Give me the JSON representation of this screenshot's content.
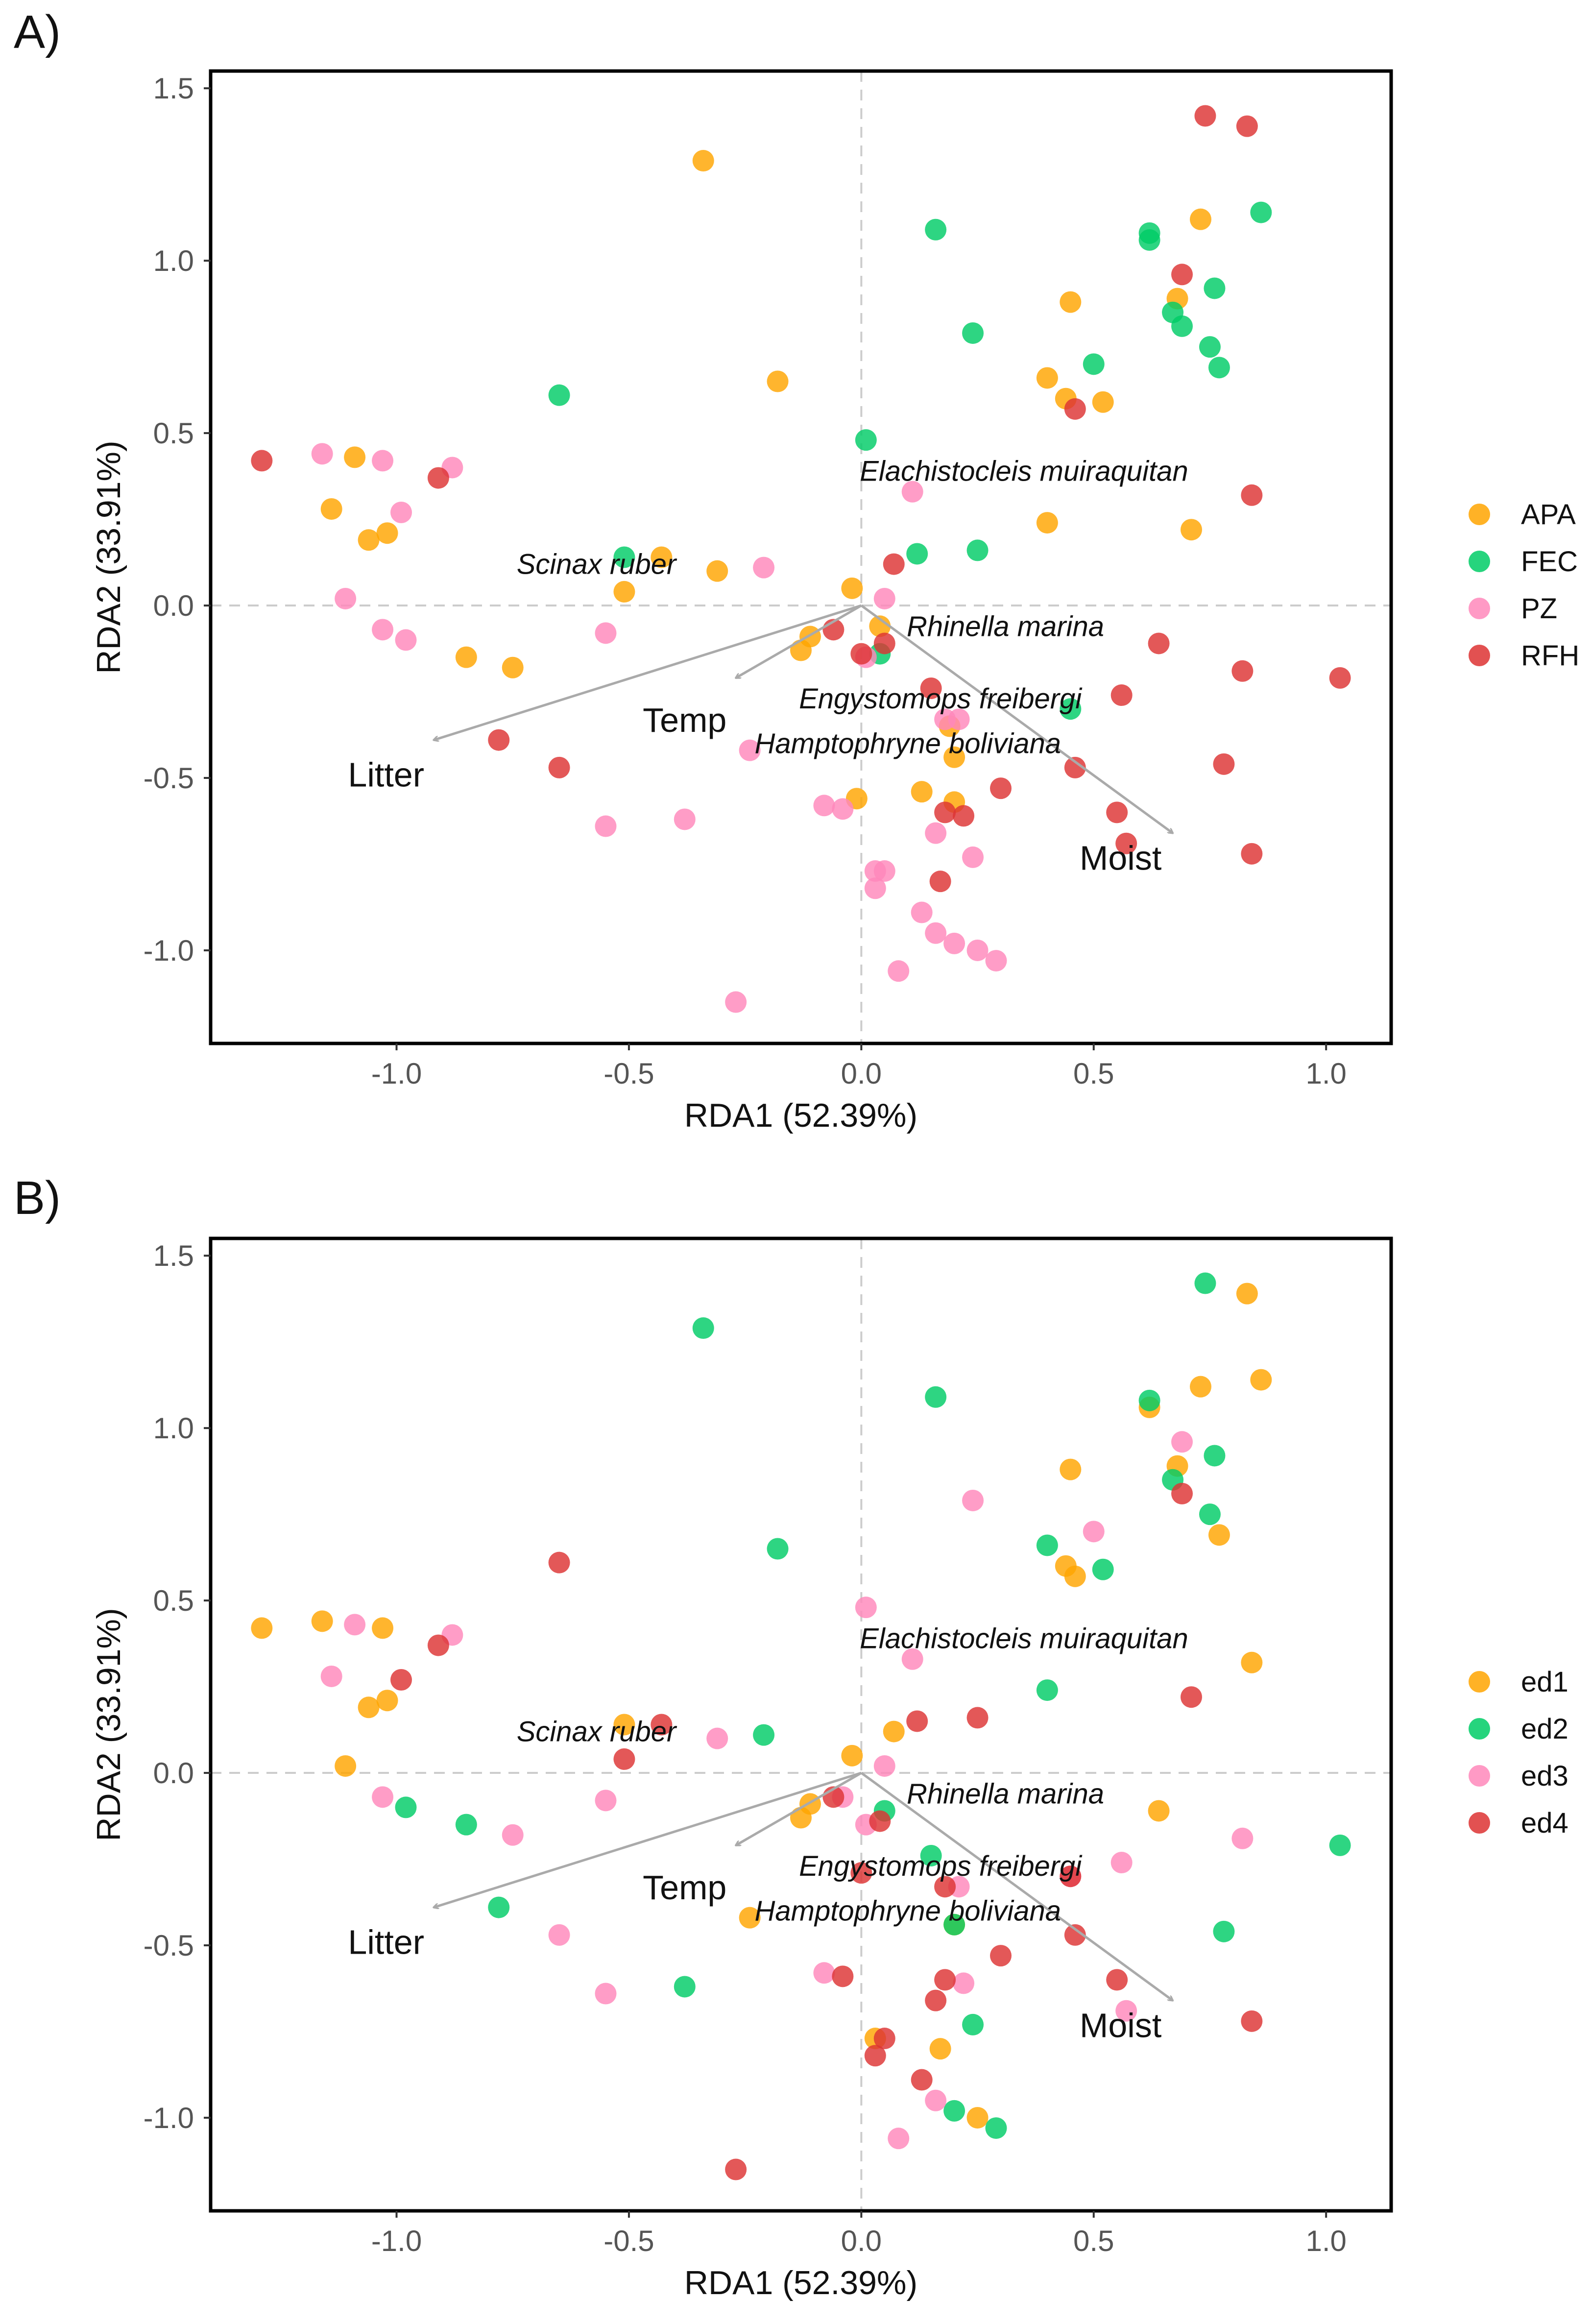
{
  "chart_data": [
    {
      "panel_label": "A)",
      "type": "scatter",
      "xlabel": "RDA1 (52.39%)",
      "ylabel": "RDA2 (33.91%)",
      "xlim": [
        -1.4,
        1.14
      ],
      "ylim": [
        -1.27,
        1.55
      ],
      "x_ticks": [
        -1.0,
        -0.5,
        0.0,
        0.5,
        1.0
      ],
      "x_tick_labels": [
        "-1.0",
        "-0.5",
        "0.0",
        "0.5",
        "1.0"
      ],
      "y_ticks": [
        -1.0,
        -0.5,
        0.0,
        0.5,
        1.0,
        1.5
      ],
      "y_tick_labels": [
        "-1.0",
        "-0.5",
        "0.0",
        "0.5",
        "1.0",
        "1.5"
      ],
      "grid": false,
      "reference_lines": "dashed lines at x=0 and y=0",
      "legend_position": "right",
      "series": [
        {
          "name": "APA",
          "color": "#FFA500",
          "points": [
            [
              -0.34,
              1.29
            ],
            [
              -0.18,
              0.65
            ],
            [
              0.73,
              1.12
            ],
            [
              0.68,
              0.89
            ],
            [
              0.45,
              0.88
            ],
            [
              0.4,
              0.66
            ],
            [
              0.44,
              0.6
            ],
            [
              0.52,
              0.59
            ],
            [
              -1.09,
              0.43
            ],
            [
              -1.14,
              0.28
            ],
            [
              -1.02,
              0.21
            ],
            [
              -1.06,
              0.19
            ],
            [
              0.4,
              0.24
            ],
            [
              0.71,
              0.22
            ],
            [
              -0.43,
              0.14
            ],
            [
              -0.31,
              0.1
            ],
            [
              -0.51,
              0.04
            ],
            [
              -0.02,
              0.05
            ],
            [
              -0.11,
              -0.09
            ],
            [
              -0.13,
              -0.13
            ],
            [
              -0.85,
              -0.15
            ],
            [
              -0.75,
              -0.18
            ],
            [
              0.04,
              -0.06
            ],
            [
              -0.01,
              -0.56
            ],
            [
              0.13,
              -0.54
            ],
            [
              0.2,
              -0.57
            ],
            [
              0.2,
              -0.44
            ],
            [
              0.19,
              -0.35
            ]
          ]
        },
        {
          "name": "FEC",
          "color": "#00CC66",
          "points": [
            [
              0.86,
              1.14
            ],
            [
              0.62,
              1.08
            ],
            [
              0.62,
              1.06
            ],
            [
              0.16,
              1.09
            ],
            [
              0.76,
              0.92
            ],
            [
              0.67,
              0.85
            ],
            [
              0.69,
              0.81
            ],
            [
              0.24,
              0.79
            ],
            [
              0.75,
              0.75
            ],
            [
              0.77,
              0.69
            ],
            [
              0.5,
              0.7
            ],
            [
              -0.65,
              0.61
            ],
            [
              0.01,
              0.48
            ],
            [
              -0.51,
              0.14
            ],
            [
              0.12,
              0.15
            ],
            [
              0.25,
              0.16
            ],
            [
              0.45,
              -0.3
            ],
            [
              0.04,
              -0.14
            ]
          ]
        },
        {
          "name": "PZ",
          "color": "#FF88BB",
          "points": [
            [
              -1.16,
              0.44
            ],
            [
              -1.03,
              0.42
            ],
            [
              -0.88,
              0.4
            ],
            [
              -0.99,
              0.27
            ],
            [
              0.11,
              0.33
            ],
            [
              -0.21,
              0.11
            ],
            [
              -1.11,
              0.02
            ],
            [
              0.05,
              0.02
            ],
            [
              -1.03,
              -0.07
            ],
            [
              -0.98,
              -0.1
            ],
            [
              -0.55,
              -0.08
            ],
            [
              0.01,
              -0.15
            ],
            [
              -0.24,
              -0.42
            ],
            [
              0.18,
              -0.33
            ],
            [
              0.21,
              -0.33
            ],
            [
              -0.08,
              -0.58
            ],
            [
              -0.04,
              -0.59
            ],
            [
              -0.55,
              -0.64
            ],
            [
              -0.38,
              -0.62
            ],
            [
              0.16,
              -0.66
            ],
            [
              0.24,
              -0.73
            ],
            [
              0.03,
              -0.77
            ],
            [
              0.05,
              -0.77
            ],
            [
              0.03,
              -0.82
            ],
            [
              0.13,
              -0.89
            ],
            [
              0.16,
              -0.95
            ],
            [
              0.2,
              -0.98
            ],
            [
              0.25,
              -1.0
            ],
            [
              0.29,
              -1.03
            ],
            [
              0.08,
              -1.06
            ],
            [
              -0.27,
              -1.15
            ]
          ]
        },
        {
          "name": "RFH",
          "color": "#DD3333",
          "points": [
            [
              0.74,
              1.42
            ],
            [
              0.83,
              1.39
            ],
            [
              0.69,
              0.96
            ],
            [
              0.46,
              0.57
            ],
            [
              -1.29,
              0.42
            ],
            [
              -0.91,
              0.37
            ],
            [
              0.84,
              0.32
            ],
            [
              0.07,
              0.12
            ],
            [
              -0.06,
              -0.07
            ],
            [
              0.05,
              -0.11
            ],
            [
              0.0,
              -0.14
            ],
            [
              0.64,
              -0.11
            ],
            [
              0.82,
              -0.19
            ],
            [
              1.03,
              -0.21
            ],
            [
              0.15,
              -0.24
            ],
            [
              0.56,
              -0.26
            ],
            [
              -0.78,
              -0.39
            ],
            [
              -0.65,
              -0.47
            ],
            [
              0.46,
              -0.47
            ],
            [
              0.78,
              -0.46
            ],
            [
              0.3,
              -0.53
            ],
            [
              0.55,
              -0.6
            ],
            [
              0.18,
              -0.6
            ],
            [
              0.22,
              -0.61
            ],
            [
              0.57,
              -0.69
            ],
            [
              0.84,
              -0.72
            ],
            [
              0.17,
              -0.8
            ]
          ]
        }
      ],
      "arrows": [
        {
          "label": "Litter",
          "x": -0.92,
          "y": -0.39
        },
        {
          "label": "Temp",
          "x": -0.27,
          "y": -0.21
        },
        {
          "label": "Moist",
          "x": 0.67,
          "y": -0.66
        }
      ],
      "species_labels": [
        {
          "text": "Elachistocleis muiraquitan",
          "x": 0.35,
          "y": 0.39
        },
        {
          "text": "Scinax ruber",
          "x": -0.57,
          "y": 0.12
        },
        {
          "text": "Rhinella marina",
          "x": 0.31,
          "y": -0.06
        },
        {
          "text": "Engystomops freibergi",
          "x": 0.17,
          "y": -0.27
        },
        {
          "text": "Hamptophryne boliviana",
          "x": 0.1,
          "y": -0.4
        }
      ]
    },
    {
      "panel_label": "B)",
      "type": "scatter",
      "xlabel": "RDA1 (52.39%)",
      "ylabel": "RDA2 (33.91%)",
      "xlim": [
        -1.4,
        1.14
      ],
      "ylim": [
        -1.27,
        1.55
      ],
      "x_ticks": [
        -1.0,
        -0.5,
        0.0,
        0.5,
        1.0
      ],
      "x_tick_labels": [
        "-1.0",
        "-0.5",
        "0.0",
        "0.5",
        "1.0"
      ],
      "y_ticks": [
        -1.0,
        -0.5,
        0.0,
        0.5,
        1.0,
        1.5
      ],
      "y_tick_labels": [
        "-1.0",
        "-0.5",
        "0.0",
        "0.5",
        "1.0",
        "1.5"
      ],
      "grid": false,
      "reference_lines": "dashed lines at x=0 and y=0",
      "legend_position": "right",
      "series": [
        {
          "name": "ed1",
          "color": "#FFA500",
          "points": [
            [
              0.83,
              1.39
            ],
            [
              0.86,
              1.14
            ],
            [
              0.73,
              1.12
            ],
            [
              0.62,
              1.06
            ],
            [
              0.68,
              0.89
            ],
            [
              0.45,
              0.88
            ],
            [
              0.44,
              0.6
            ],
            [
              0.46,
              0.57
            ],
            [
              0.77,
              0.69
            ],
            [
              -1.29,
              0.42
            ],
            [
              -1.16,
              0.44
            ],
            [
              -1.03,
              0.42
            ],
            [
              0.84,
              0.32
            ],
            [
              -1.02,
              0.21
            ],
            [
              -1.06,
              0.19
            ],
            [
              -1.11,
              0.02
            ],
            [
              -0.51,
              0.14
            ],
            [
              0.07,
              0.12
            ],
            [
              -0.02,
              0.05
            ],
            [
              -0.11,
              -0.09
            ],
            [
              -0.13,
              -0.13
            ],
            [
              0.64,
              -0.11
            ],
            [
              -0.24,
              -0.42
            ],
            [
              0.2,
              -0.44
            ],
            [
              0.03,
              -0.77
            ],
            [
              0.17,
              -0.8
            ],
            [
              0.25,
              -1.0
            ]
          ]
        },
        {
          "name": "ed2",
          "color": "#00CC66",
          "points": [
            [
              0.74,
              1.42
            ],
            [
              -0.34,
              1.29
            ],
            [
              0.16,
              1.09
            ],
            [
              0.62,
              1.08
            ],
            [
              0.76,
              0.92
            ],
            [
              0.67,
              0.85
            ],
            [
              0.75,
              0.75
            ],
            [
              0.4,
              0.66
            ],
            [
              -0.18,
              0.65
            ],
            [
              0.52,
              0.59
            ],
            [
              0.4,
              0.24
            ],
            [
              -0.21,
              0.11
            ],
            [
              0.05,
              -0.11
            ],
            [
              1.03,
              -0.21
            ],
            [
              0.15,
              -0.24
            ],
            [
              -0.98,
              -0.1
            ],
            [
              -0.85,
              -0.15
            ],
            [
              -0.78,
              -0.39
            ],
            [
              0.2,
              -0.44
            ],
            [
              0.78,
              -0.46
            ],
            [
              -0.38,
              -0.62
            ],
            [
              0.24,
              -0.73
            ],
            [
              0.2,
              -0.98
            ],
            [
              0.29,
              -1.03
            ]
          ]
        },
        {
          "name": "ed3",
          "color": "#FF88BB",
          "points": [
            [
              0.69,
              0.96
            ],
            [
              0.24,
              0.79
            ],
            [
              0.5,
              0.7
            ],
            [
              0.01,
              0.48
            ],
            [
              -1.09,
              0.43
            ],
            [
              -0.88,
              0.4
            ],
            [
              0.11,
              0.33
            ],
            [
              -1.14,
              0.28
            ],
            [
              -0.31,
              0.1
            ],
            [
              0.05,
              0.02
            ],
            [
              -1.03,
              -0.07
            ],
            [
              -0.55,
              -0.08
            ],
            [
              -0.04,
              -0.07
            ],
            [
              0.01,
              -0.15
            ],
            [
              -0.75,
              -0.18
            ],
            [
              0.82,
              -0.19
            ],
            [
              0.56,
              -0.26
            ],
            [
              0.45,
              -0.3
            ],
            [
              0.21,
              -0.33
            ],
            [
              -0.65,
              -0.47
            ],
            [
              -0.08,
              -0.58
            ],
            [
              0.22,
              -0.61
            ],
            [
              -0.55,
              -0.64
            ],
            [
              0.57,
              -0.69
            ],
            [
              0.16,
              -0.95
            ],
            [
              0.08,
              -1.06
            ]
          ]
        },
        {
          "name": "ed4",
          "color": "#DD3333",
          "points": [
            [
              0.69,
              0.81
            ],
            [
              -0.65,
              0.61
            ],
            [
              -0.91,
              0.37
            ],
            [
              -0.99,
              0.27
            ],
            [
              0.71,
              0.22
            ],
            [
              -0.43,
              0.14
            ],
            [
              0.12,
              0.15
            ],
            [
              0.25,
              0.16
            ],
            [
              -0.51,
              0.04
            ],
            [
              -0.06,
              -0.07
            ],
            [
              0.04,
              -0.14
            ],
            [
              0.0,
              -0.29
            ],
            [
              0.18,
              -0.33
            ],
            [
              0.45,
              -0.3
            ],
            [
              0.46,
              -0.47
            ],
            [
              0.3,
              -0.53
            ],
            [
              -0.04,
              -0.59
            ],
            [
              0.18,
              -0.6
            ],
            [
              0.55,
              -0.6
            ],
            [
              0.16,
              -0.66
            ],
            [
              0.84,
              -0.72
            ],
            [
              0.05,
              -0.77
            ],
            [
              0.03,
              -0.82
            ],
            [
              0.13,
              -0.89
            ],
            [
              -0.27,
              -1.15
            ]
          ]
        }
      ],
      "arrows": [
        {
          "label": "Litter",
          "x": -0.92,
          "y": -0.39
        },
        {
          "label": "Temp",
          "x": -0.27,
          "y": -0.21
        },
        {
          "label": "Moist",
          "x": 0.67,
          "y": -0.66
        }
      ],
      "species_labels": [
        {
          "text": "Elachistocleis muiraquitan",
          "x": 0.35,
          "y": 0.39
        },
        {
          "text": "Scinax ruber",
          "x": -0.57,
          "y": 0.12
        },
        {
          "text": "Rhinella marina",
          "x": 0.31,
          "y": -0.06
        },
        {
          "text": "Engystomops freibergi",
          "x": 0.17,
          "y": -0.27
        },
        {
          "text": "Hamptophryne boliviana",
          "x": 0.1,
          "y": -0.4
        }
      ]
    }
  ],
  "colors": {
    "axis_frame": "#000000",
    "zero_line": "#CCCCCC",
    "arrow": "#AAAAAA",
    "tick_text": "#555555"
  }
}
